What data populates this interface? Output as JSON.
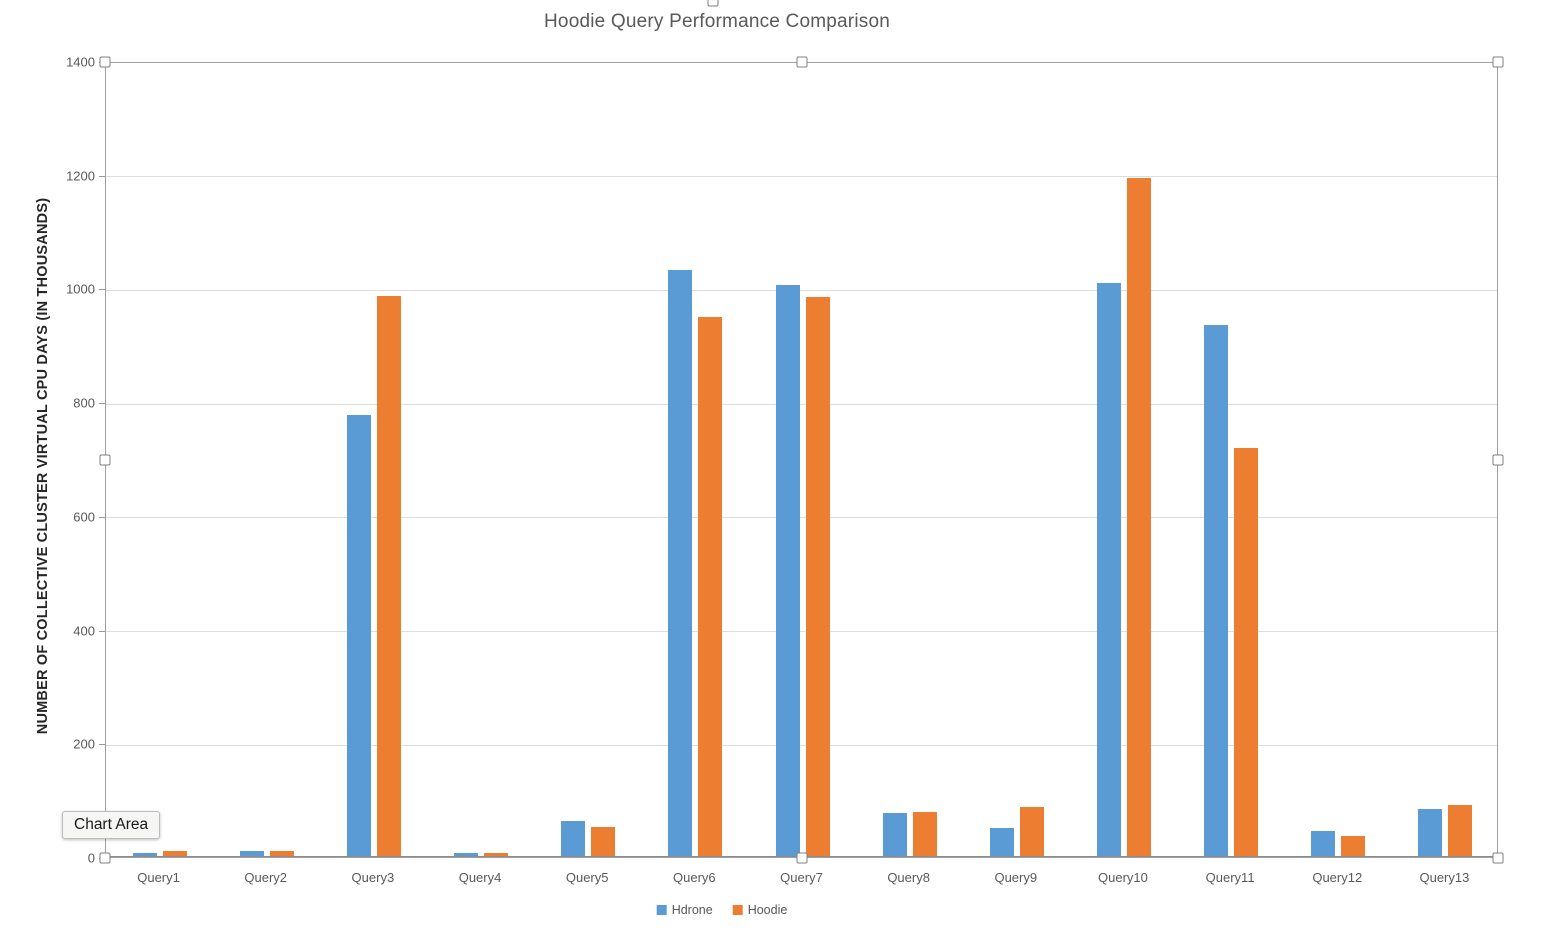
{
  "chart": {
    "title": "Hoodie Query Performance Comparison",
    "tooltip_label": "Chart Area"
  },
  "chart_data": {
    "type": "bar",
    "title": "Hoodie Query Performance Comparison",
    "categories": [
      "Query1",
      "Query2",
      "Query3",
      "Query4",
      "Query5",
      "Query6",
      "Query7",
      "Query8",
      "Query9",
      "Query10",
      "Query11",
      "Query12",
      "Query13"
    ],
    "series": [
      {
        "name": "Hdrone",
        "color": "#5B9BD5",
        "values": [
          5,
          9,
          775,
          5,
          62,
          1030,
          1005,
          76,
          49,
          1008,
          934,
          44,
          82
        ]
      },
      {
        "name": "Hoodie",
        "color": "#ED7D31",
        "values": [
          9,
          8,
          985,
          5,
          51,
          948,
          983,
          77,
          86,
          1193,
          717,
          35,
          90
        ]
      }
    ],
    "xlabel": "",
    "ylabel": "NUMBER OF COLLECTIVE CLUSTER VIRTUAL CPU DAYS (IN THOUSANDS)",
    "ylim": [
      0,
      1400
    ],
    "yticks": [
      0,
      200,
      400,
      600,
      800,
      1000,
      1200,
      1400
    ],
    "grid": true,
    "legend_position": "bottom"
  }
}
